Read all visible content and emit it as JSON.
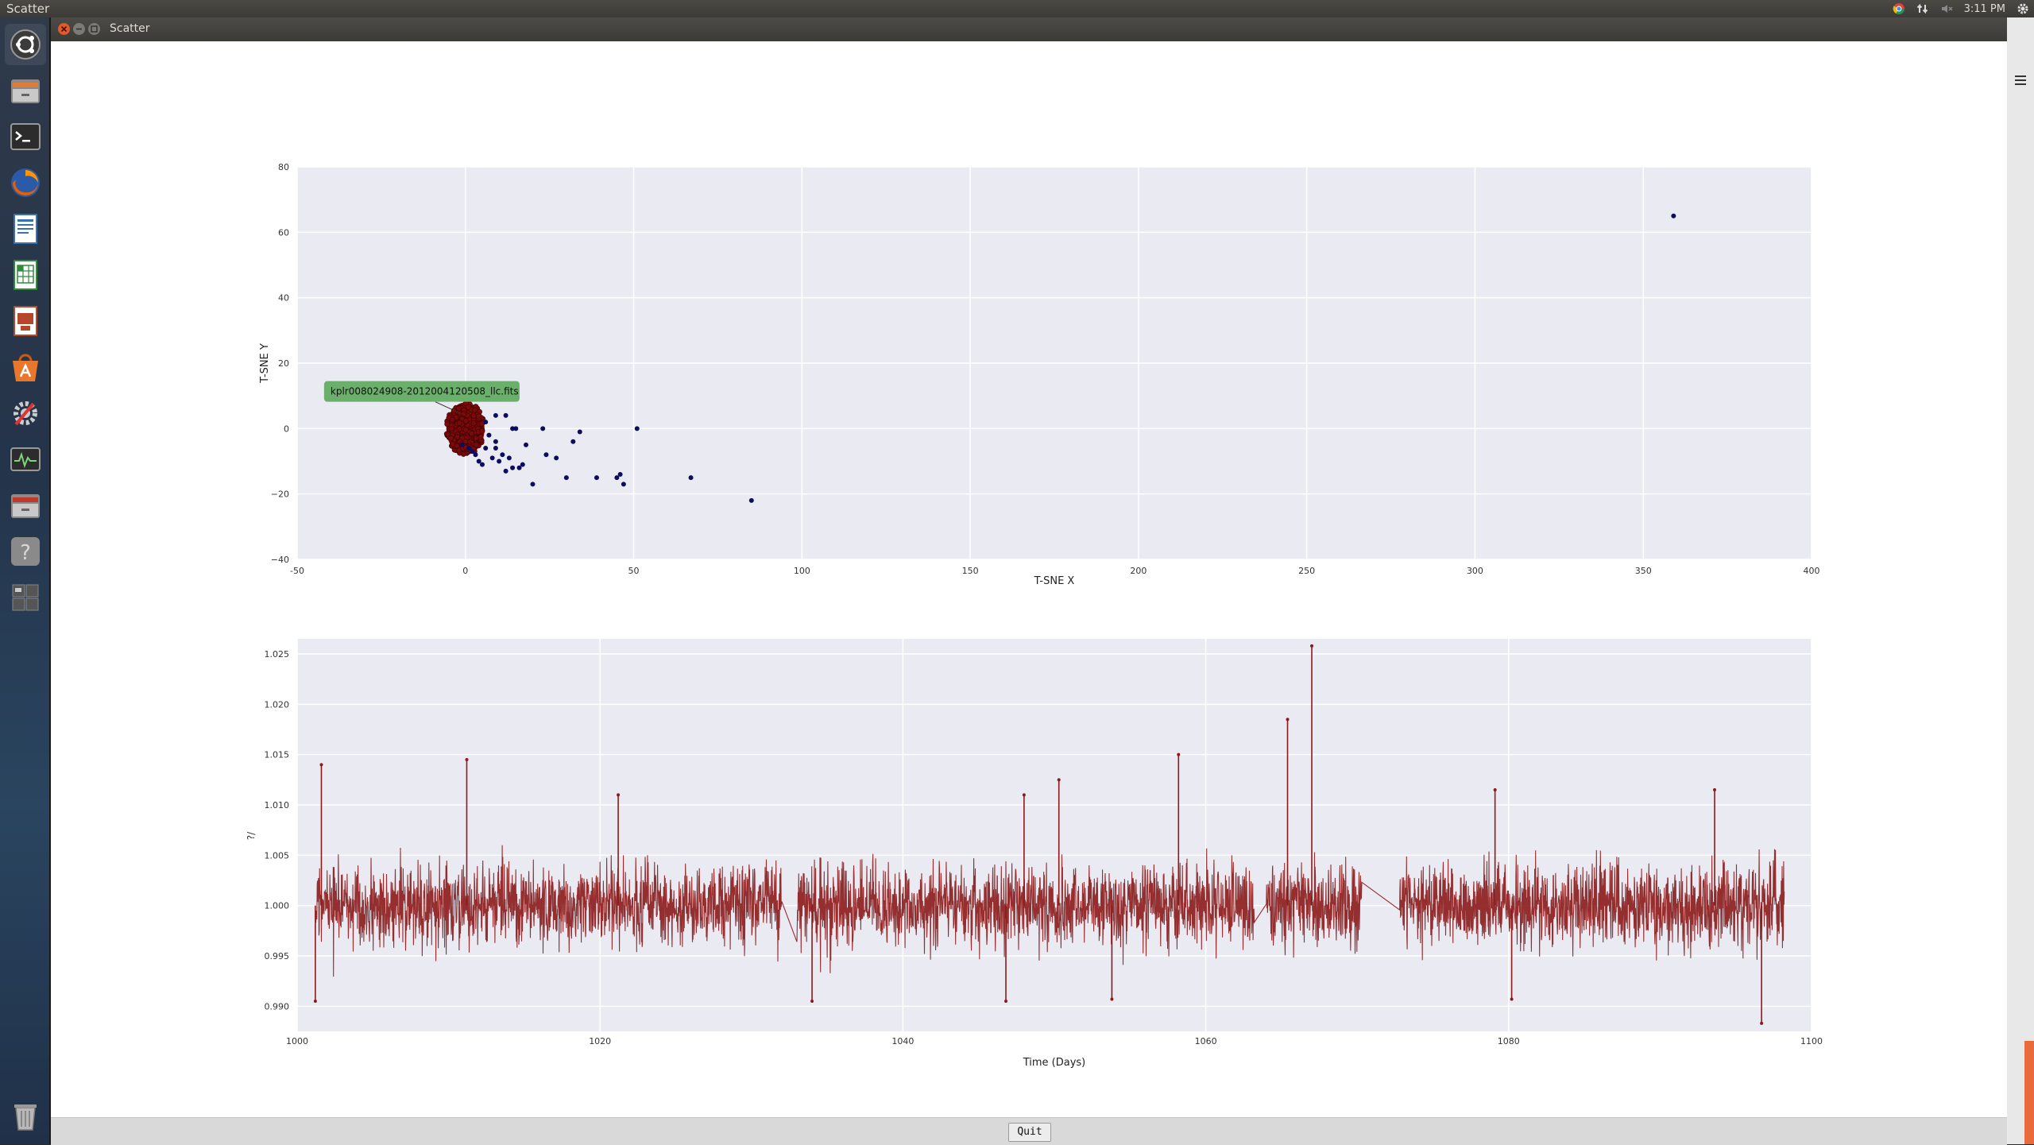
{
  "top_panel": {
    "title": "Scatter",
    "clock": "3:11 PM",
    "icons": [
      "chrome-icon",
      "network-icon",
      "volume-muted-icon",
      "settings-gear-icon"
    ]
  },
  "launcher": {
    "items": [
      "dash-home-icon",
      "files-icon",
      "terminal-icon",
      "firefox-icon",
      "writer-icon",
      "calc-icon",
      "impress-icon",
      "software-center-icon",
      "system-settings-icon",
      "system-monitor-icon",
      "files-icon",
      "help-icon",
      "workspace-switcher-icon",
      "trash-icon"
    ]
  },
  "window": {
    "title": "Scatter",
    "quit_label": "Quit"
  },
  "chart_data": [
    {
      "type": "scatter",
      "xlabel": "T-SNE X",
      "ylabel": "T-SNE Y",
      "xlim": [
        -50,
        400
      ],
      "ylim": [
        -40,
        80
      ],
      "xticks": [
        "-50",
        "0",
        "50",
        "100",
        "150",
        "200",
        "250",
        "300",
        "350",
        "400"
      ],
      "yticks": [
        "80",
        "60",
        "40",
        "20",
        "0",
        "−20",
        "−40"
      ],
      "grid": true,
      "annotation": "kplr008024908-2012004120508_llc.fits",
      "highlight_cluster": {
        "center": [
          0,
          0
        ],
        "color": "#8b0000"
      },
      "points": [
        [
          359,
          65
        ],
        [
          85,
          -22
        ],
        [
          67,
          -15
        ],
        [
          51,
          0
        ],
        [
          47,
          -17
        ],
        [
          46,
          -14
        ],
        [
          45,
          -15
        ],
        [
          39,
          -15
        ],
        [
          34,
          -1
        ],
        [
          32,
          -4
        ],
        [
          30,
          -15
        ],
        [
          27,
          -9
        ],
        [
          24,
          -8
        ],
        [
          23,
          0
        ],
        [
          20,
          -17
        ],
        [
          18,
          -5
        ],
        [
          17,
          -11
        ],
        [
          16,
          -12
        ],
        [
          15,
          0
        ],
        [
          14,
          0
        ],
        [
          14,
          -12
        ],
        [
          13,
          -9
        ],
        [
          12,
          4
        ],
        [
          12,
          -13
        ],
        [
          11,
          -8
        ],
        [
          10,
          -10
        ],
        [
          9,
          4
        ],
        [
          9,
          -6
        ],
        [
          9,
          -4
        ],
        [
          8,
          -9
        ],
        [
          6,
          -6
        ],
        [
          5,
          -11
        ],
        [
          4,
          10
        ],
        [
          4,
          -10
        ],
        [
          3,
          -8
        ],
        [
          2,
          -7
        ],
        [
          1,
          -6
        ],
        [
          -1,
          -5
        ],
        [
          6,
          2
        ],
        [
          7,
          -2
        ]
      ]
    },
    {
      "type": "line",
      "xlabel": "Time (Days)",
      "ylabel": "",
      "xlim": [
        1000,
        1100
      ],
      "ylim": [
        0.9875,
        1.0265
      ],
      "xticks": [
        "1000",
        "1020",
        "1040",
        "1060",
        "1080",
        "1100"
      ],
      "yticks": [
        "1.025",
        "1.020",
        "1.015",
        "1.010",
        "1.005",
        "1.000",
        "0.995",
        "0.990"
      ],
      "grid": true,
      "color": "#8b1a1a",
      "baseline": 1.0,
      "gaps": [
        [
          1032.0,
          1033.0
        ],
        [
          1063.2,
          1064.0
        ],
        [
          1070.3,
          1072.8
        ]
      ],
      "segments": [
        [
          1001.2,
          1032.0
        ],
        [
          1033.0,
          1063.2
        ],
        [
          1064.0,
          1070.3
        ],
        [
          1072.8,
          1098.2
        ]
      ],
      "peaks": [
        [
          1001.6,
          1.014
        ],
        [
          1011.2,
          1.0145
        ],
        [
          1021.2,
          1.011
        ],
        [
          1048.0,
          1.011
        ],
        [
          1050.3,
          1.0125
        ],
        [
          1058.2,
          1.015
        ],
        [
          1065.4,
          1.0185
        ],
        [
          1067.0,
          1.0258
        ],
        [
          1079.1,
          1.0115
        ],
        [
          1093.6,
          1.0115
        ],
        [
          1096.7,
          0.9883
        ],
        [
          1001.2,
          0.9905
        ],
        [
          1034.0,
          0.9905
        ],
        [
          1046.8,
          0.9905
        ],
        [
          1053.8,
          0.9907
        ],
        [
          1080.2,
          0.9907
        ]
      ]
    }
  ]
}
